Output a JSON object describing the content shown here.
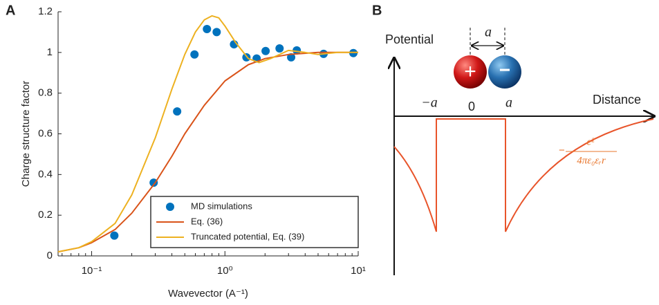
{
  "chart_data": {
    "type": "line",
    "panel_label": "A",
    "xlabel": "Wavevector (A⁻¹)",
    "ylabel": "Charge structure factor",
    "xscale": "log",
    "xlim": [
      0.056,
      10
    ],
    "xticks": [
      {
        "value": 0.1,
        "label": "10⁻¹"
      },
      {
        "value": 1,
        "label": "10⁰"
      },
      {
        "value": 10,
        "label": "10¹"
      }
    ],
    "ylim": [
      0,
      1.2
    ],
    "yticks": [
      0,
      0.2,
      0.4,
      0.6,
      0.8,
      1,
      1.2
    ],
    "legend": "lower right",
    "series": [
      {
        "name": "MD simulations",
        "type": "scatter",
        "color": "#0072bd",
        "x": [
          0.148,
          0.292,
          0.438,
          0.591,
          0.733,
          0.867,
          1.17,
          1.45,
          1.73,
          2.02,
          2.57,
          3.14,
          3.46,
          5.5,
          9.2
        ],
        "values": [
          0.1,
          0.36,
          0.71,
          0.99,
          1.115,
          1.1,
          1.04,
          0.976,
          0.97,
          1.007,
          1.02,
          0.976,
          1.01,
          0.993,
          0.997
        ]
      },
      {
        "name": "Eq. (36)",
        "type": "line",
        "color": "#d95319",
        "x": [
          0.056,
          0.08,
          0.1,
          0.15,
          0.2,
          0.3,
          0.4,
          0.5,
          0.7,
          1,
          1.5,
          2,
          3,
          5,
          10
        ],
        "values": [
          0.02,
          0.04,
          0.065,
          0.13,
          0.21,
          0.36,
          0.49,
          0.6,
          0.74,
          0.86,
          0.94,
          0.97,
          0.99,
          1.0,
          1.0
        ]
      },
      {
        "name": "Truncated potential, Eq. (39)",
        "type": "line",
        "color": "#edb120",
        "x": [
          0.056,
          0.08,
          0.1,
          0.15,
          0.2,
          0.3,
          0.4,
          0.5,
          0.6,
          0.7,
          0.8,
          0.9,
          1.0,
          1.2,
          1.5,
          1.8,
          2.2,
          3,
          4,
          5,
          7,
          10
        ],
        "values": [
          0.02,
          0.04,
          0.07,
          0.16,
          0.3,
          0.58,
          0.82,
          0.99,
          1.1,
          1.16,
          1.18,
          1.17,
          1.13,
          1.05,
          0.97,
          0.95,
          0.97,
          1.01,
          1.0,
          0.99,
          1.0,
          1.0
        ]
      }
    ]
  },
  "panel_b": {
    "panel_label": "B",
    "y_axis_label": "Potential",
    "x_axis_label": "Distance",
    "tick_labels": [
      "−a",
      "0",
      "a"
    ],
    "separation_label": "a",
    "charges": [
      "+",
      "−"
    ],
    "formula_sign": "−",
    "formula_numerator": "e²",
    "formula_denominator": "4πε₀εᵣr"
  }
}
